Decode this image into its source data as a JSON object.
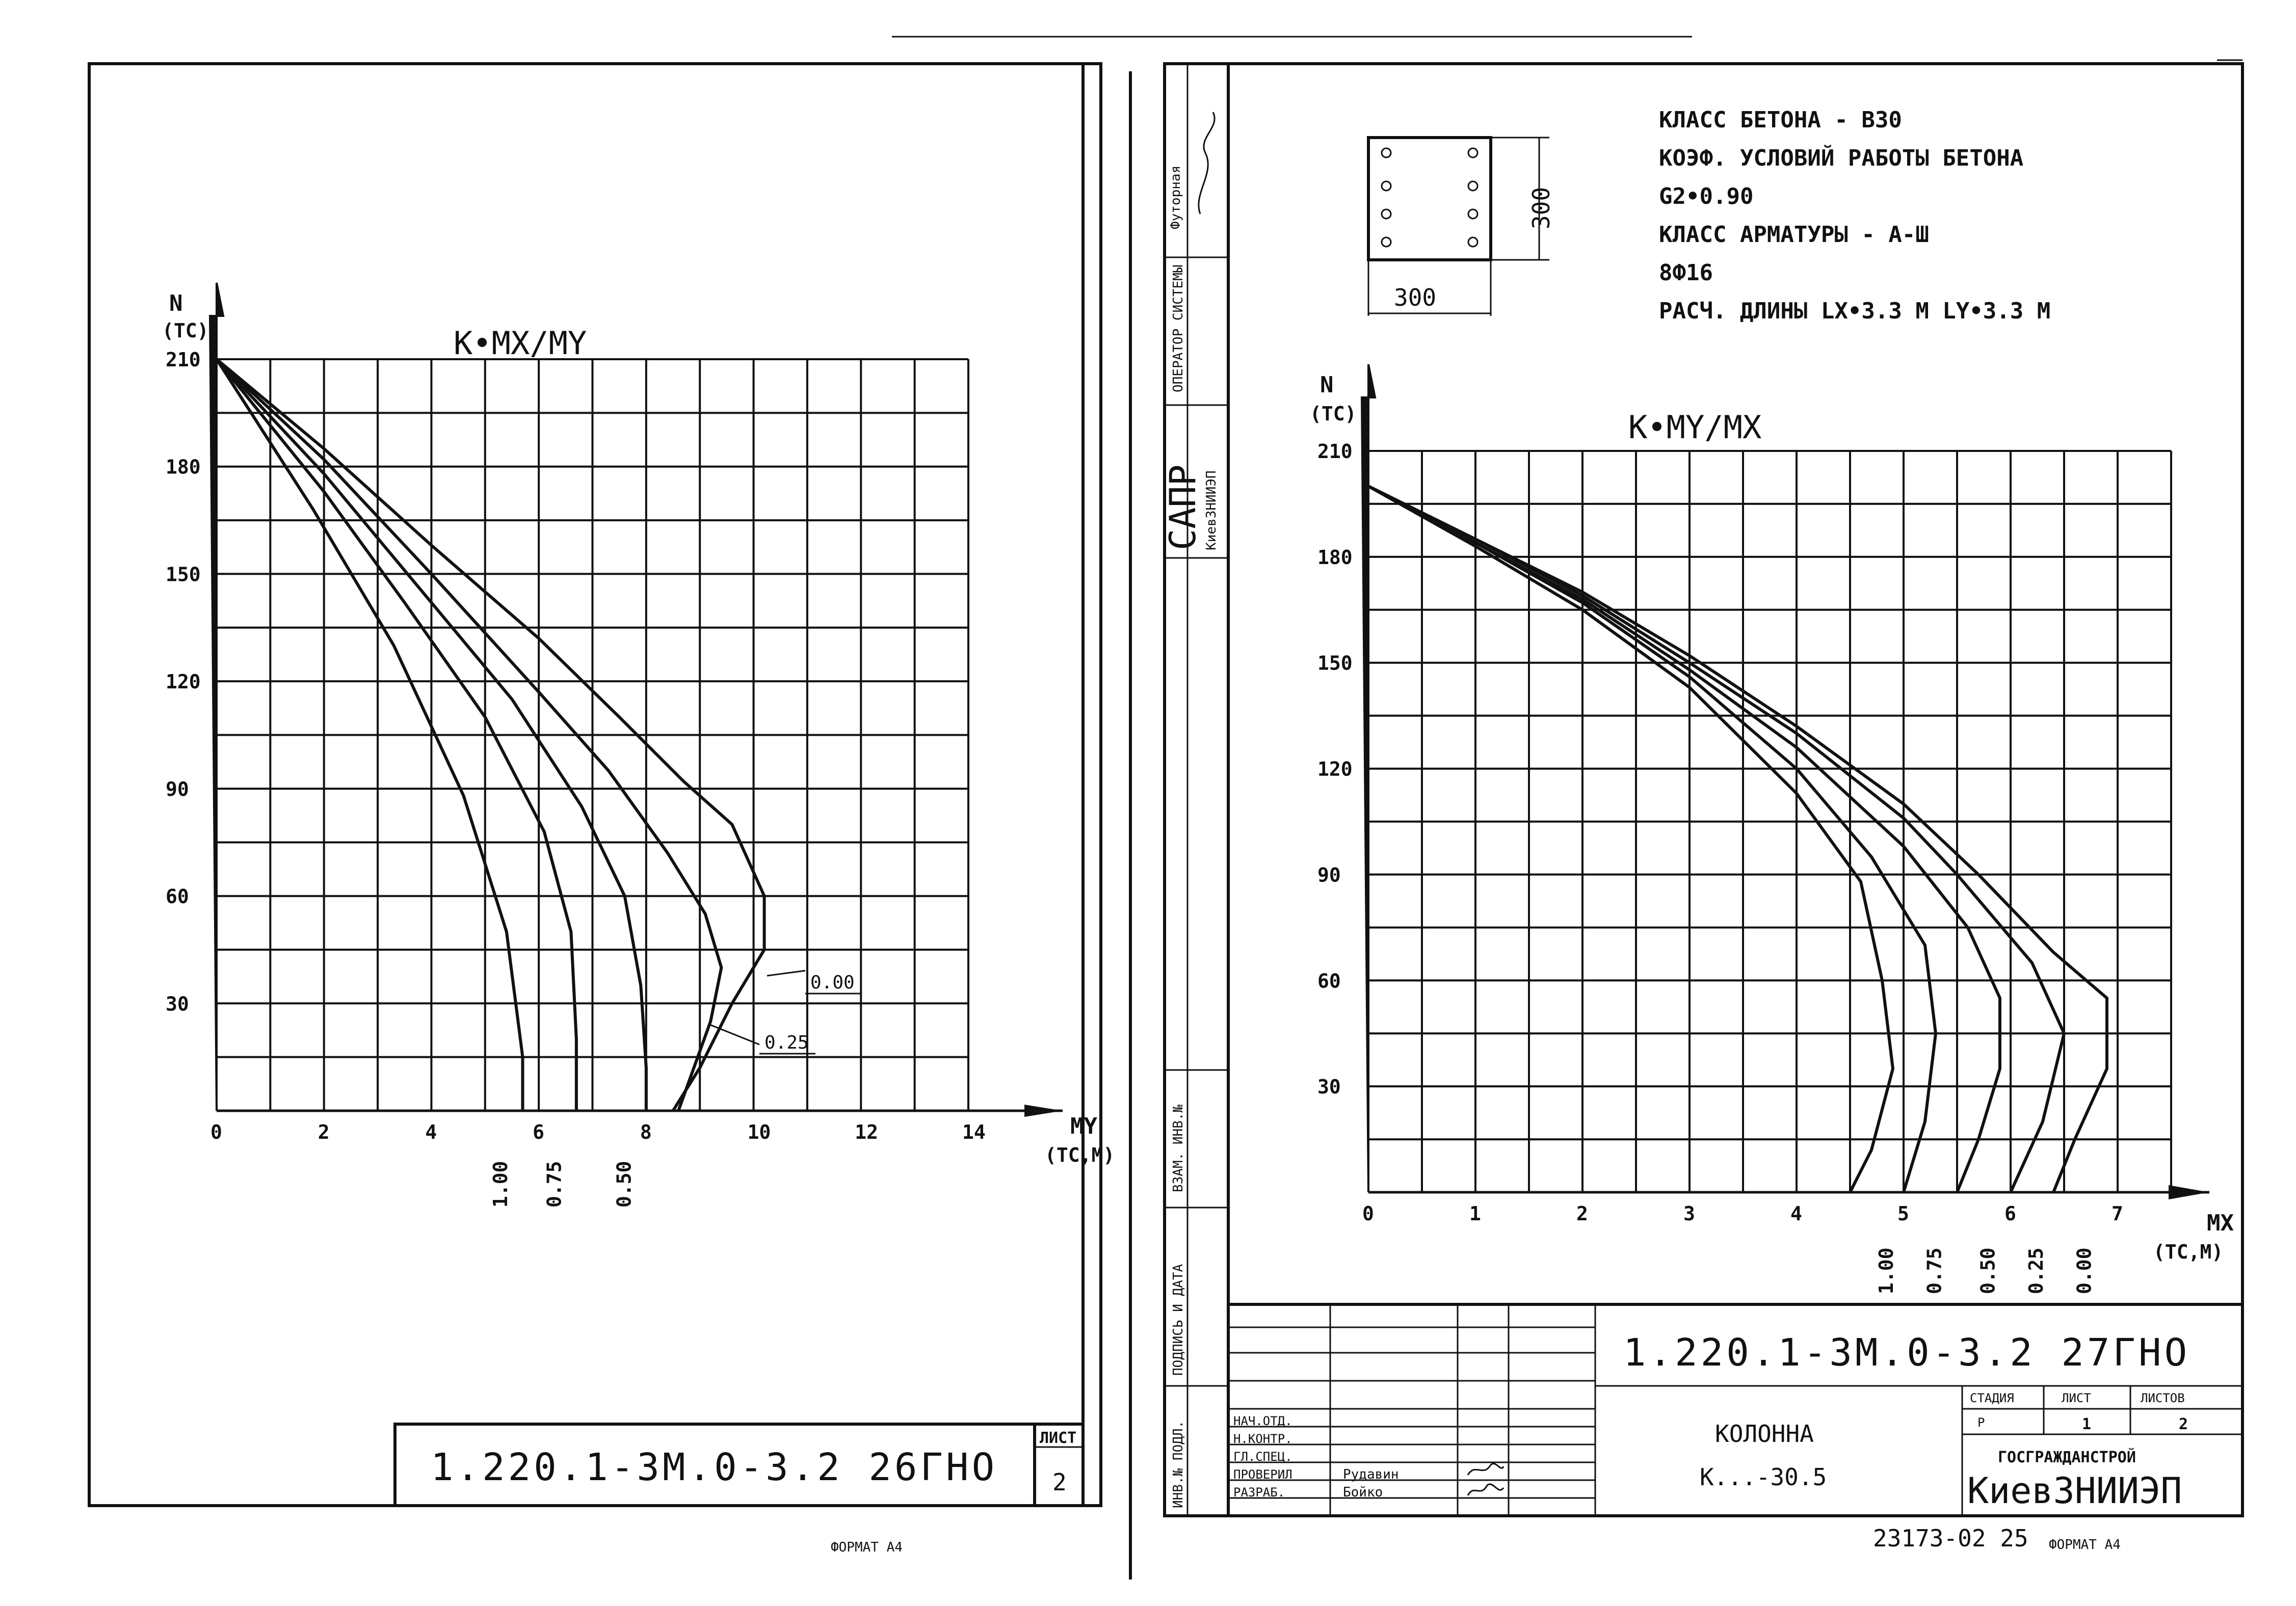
{
  "left_sheet": {
    "chart_data": {
      "type": "line",
      "title": "K•MX/MY",
      "ylabel_name": "N",
      "ylabel_unit": "(ТС)",
      "xlabel_name": "MY",
      "xlabel_unit": "(ТС,М)",
      "xlim": [
        0,
        14
      ],
      "ylim": [
        0,
        210
      ],
      "x_ticks": [
        "0",
        "2",
        "4",
        "6",
        "8",
        "10",
        "12",
        "14"
      ],
      "y_ticks": [
        "210",
        "180",
        "150",
        "120",
        "90",
        "60",
        "30"
      ],
      "y_tick_values": [
        210,
        180,
        150,
        120,
        90,
        60,
        30
      ],
      "series": [
        {
          "name": "0.00",
          "points": [
            [
              0,
              210
            ],
            [
              2,
              185
            ],
            [
              4,
              158
            ],
            [
              6,
              132
            ],
            [
              7.5,
              110
            ],
            [
              8.7,
              92
            ],
            [
              9.6,
              80
            ],
            [
              10.2,
              60
            ],
            [
              10.2,
              45
            ],
            [
              9.6,
              30
            ],
            [
              9.0,
              12
            ],
            [
              8.5,
              0
            ]
          ]
        },
        {
          "name": "0.25",
          "points": [
            [
              0,
              210
            ],
            [
              2,
              182
            ],
            [
              4,
              150
            ],
            [
              6,
              117
            ],
            [
              7.3,
              95
            ],
            [
              8.4,
              72
            ],
            [
              9.1,
              55
            ],
            [
              9.4,
              40
            ],
            [
              9.2,
              25
            ],
            [
              8.6,
              0
            ]
          ]
        },
        {
          "name": "0.50",
          "points": [
            [
              0,
              210
            ],
            [
              2,
              178
            ],
            [
              4,
              142
            ],
            [
              5.5,
              115
            ],
            [
              6.8,
              85
            ],
            [
              7.6,
              60
            ],
            [
              7.9,
              35
            ],
            [
              8.0,
              12
            ],
            [
              8.0,
              0
            ]
          ]
        },
        {
          "name": "0.75",
          "points": [
            [
              0,
              210
            ],
            [
              2,
              173
            ],
            [
              3.5,
              142
            ],
            [
              5.0,
              110
            ],
            [
              6.1,
              78
            ],
            [
              6.6,
              50
            ],
            [
              6.7,
              20
            ],
            [
              6.7,
              0
            ]
          ]
        },
        {
          "name": "1.00",
          "points": [
            [
              0,
              210
            ],
            [
              1.8,
              168
            ],
            [
              3.3,
              130
            ],
            [
              4.6,
              88
            ],
            [
              5.4,
              50
            ],
            [
              5.7,
              15
            ],
            [
              5.7,
              0
            ]
          ]
        }
      ],
      "side_labels": [
        "1.00",
        "0.75",
        "0.50"
      ],
      "callouts": [
        "0.00",
        "0.25"
      ],
      "grid": true
    },
    "title_block": {
      "code": "1.220.1-3M.0-3.2 26ГНО",
      "sheet_label": "ЛИСТ",
      "sheet_no": "2"
    },
    "format_label": "ФОРМАТ А4"
  },
  "right_sheet": {
    "spec": {
      "line1": "КЛАСС БЕТОНА - В30",
      "line2": "КОЭФ. УСЛОВИЙ РАБОТЫ БЕТОНА",
      "line3": "G2•0.90",
      "line4": "КЛАСС АРМАТУРЫ - А-Ш",
      "line5": "8Ф16",
      "line6": "РАСЧ. ДЛИНЫ  LX•3.3 М  LY•3.3 М"
    },
    "section": {
      "width_label": "300",
      "height_label": "300"
    },
    "chart_data": {
      "type": "line",
      "title": "K•MY/MX",
      "ylabel_name": "N",
      "ylabel_unit": "(ТС)",
      "xlabel_name": "MX",
      "xlabel_unit": "(ТС,М)",
      "xlim": [
        0,
        7.5
      ],
      "ylim": [
        0,
        210
      ],
      "x_ticks": [
        "0",
        "1",
        "2",
        "3",
        "4",
        "5",
        "6",
        "7"
      ],
      "y_ticks": [
        "210",
        "180",
        "150",
        "120",
        "90",
        "60",
        "30"
      ],
      "y_tick_values": [
        210,
        180,
        150,
        120,
        90,
        60,
        30
      ],
      "series": [
        {
          "name": "0.00",
          "points": [
            [
              0,
              200
            ],
            [
              1,
              185
            ],
            [
              2,
              170
            ],
            [
              3,
              152
            ],
            [
              4,
              132
            ],
            [
              5,
              110
            ],
            [
              5.7,
              90
            ],
            [
              6.4,
              68
            ],
            [
              6.9,
              55
            ],
            [
              6.9,
              35
            ],
            [
              6.6,
              15
            ],
            [
              6.4,
              0
            ]
          ]
        },
        {
          "name": "0.25",
          "points": [
            [
              0,
              200
            ],
            [
              1,
              185
            ],
            [
              2,
              169
            ],
            [
              3,
              150
            ],
            [
              4,
              130
            ],
            [
              5,
              106
            ],
            [
              5.5,
              90
            ],
            [
              6.2,
              65
            ],
            [
              6.5,
              45
            ],
            [
              6.3,
              20
            ],
            [
              6.0,
              0
            ]
          ]
        },
        {
          "name": "0.50",
          "points": [
            [
              0,
              200
            ],
            [
              1,
              184
            ],
            [
              2,
              168
            ],
            [
              3,
              148
            ],
            [
              4,
              126
            ],
            [
              5,
              98
            ],
            [
              5.6,
              75
            ],
            [
              5.9,
              55
            ],
            [
              5.9,
              35
            ],
            [
              5.7,
              15
            ],
            [
              5.5,
              0
            ]
          ]
        },
        {
          "name": "0.75",
          "points": [
            [
              0,
              200
            ],
            [
              1,
              184
            ],
            [
              2,
              167
            ],
            [
              3,
              146
            ],
            [
              4,
              120
            ],
            [
              4.7,
              95
            ],
            [
              5.2,
              70
            ],
            [
              5.3,
              45
            ],
            [
              5.2,
              20
            ],
            [
              5.0,
              0
            ]
          ]
        },
        {
          "name": "1.00",
          "points": [
            [
              0,
              200
            ],
            [
              1,
              183
            ],
            [
              2,
              165
            ],
            [
              3,
              143
            ],
            [
              4,
              113
            ],
            [
              4.6,
              88
            ],
            [
              4.8,
              60
            ],
            [
              4.9,
              35
            ],
            [
              4.7,
              12
            ],
            [
              4.5,
              0
            ]
          ]
        }
      ],
      "bottom_labels": [
        "1.00",
        "0.75",
        "0.50",
        "0.25",
        "0.00"
      ],
      "grid": true
    },
    "title_block": {
      "code": "1.220.1-3M.0-3.2 27ГНО",
      "name": "КОЛОННА",
      "mark": "К...-30.5",
      "stage_label": "СТАДИЯ",
      "sheet_label": "ЛИСТ",
      "sheets_label": "ЛИСТОВ",
      "stage": "Р",
      "sheet": "1",
      "sheets": "2",
      "org1": "ГОСГРАЖДАНСТРОЙ",
      "org2": "КиевЗНИИЭП",
      "roles": [
        "НАЧ.ОТД.",
        "Н.КОНТР.",
        "ГЛ.СПЕЦ.",
        "ПРОВЕРИЛ",
        "РАЗРАБ."
      ],
      "names": [
        "",
        "",
        "",
        "Рудавин",
        "Бойко"
      ],
      "doc_number": "23173-02 25",
      "format_label": "ФОРМАТ А4"
    },
    "side_stamp": {
      "cells": [
        "Футорная",
        "ОПЕРАТОР СИСТЕМЫ",
        "САПР",
        "КиевЗНИИЭП",
        "ВЗАМ. ИНВ.№",
        "ПОДПИСЬ И ДАТА",
        "ИНВ.№ ПОДЛ."
      ]
    }
  }
}
